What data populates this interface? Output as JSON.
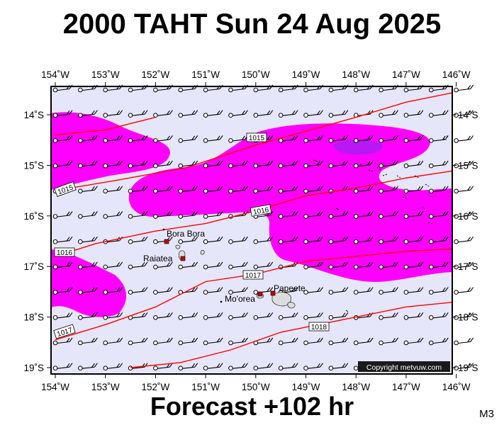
{
  "title": "2000 TAHT Sun 24 Aug 2025",
  "footer": "Forecast +102 hr",
  "code": "M3",
  "copyright": "Copyright metvuw.com",
  "colors": {
    "background": "#e6e6fa",
    "rain": "#ff00ff",
    "rain_heavy": "#a020f0",
    "isobar": "#ff0000",
    "island": "#dcdcdc"
  },
  "longitudes": [
    "154˚W",
    "153˚W",
    "152˚W",
    "151˚W",
    "150˚W",
    "149˚W",
    "148˚W",
    "147˚W",
    "146˚W"
  ],
  "latitudes": [
    "14˚S",
    "15˚S",
    "16˚S",
    "17˚S",
    "18˚S",
    "19˚S"
  ],
  "isobars": [
    {
      "label": "1015",
      "points": [
        [
          -154,
          -14.4
        ],
        [
          -153,
          -14.3
        ],
        [
          -152,
          -14.05
        ]
      ]
    },
    {
      "label": "1015",
      "points": [
        [
          -154,
          -15.5
        ],
        [
          -152.8,
          -15.3
        ],
        [
          -151.4,
          -15.05
        ],
        [
          -150,
          -14.6
        ],
        [
          -148.9,
          -14.3
        ],
        [
          -148,
          -14.05
        ],
        [
          -147,
          -13.75
        ],
        [
          -146,
          -13.55
        ]
      ]
    },
    {
      "label": "1016",
      "points": [
        [
          -154,
          -16.8
        ],
        [
          -153.2,
          -16.55
        ],
        [
          -152,
          -16.3
        ],
        [
          -151,
          -16.15
        ],
        [
          -150,
          -15.9
        ],
        [
          -149,
          -15.6
        ],
        [
          -148,
          -15.45
        ],
        [
          -147,
          -15.25
        ],
        [
          -146,
          -15.1
        ]
      ]
    },
    {
      "label": "1017",
      "points": [
        [
          -154,
          -18.45
        ],
        [
          -153,
          -18.15
        ],
        [
          -152,
          -17.8
        ],
        [
          -151,
          -17.3
        ],
        [
          -150,
          -17.15
        ],
        [
          -149,
          -16.9
        ],
        [
          -148,
          -16.8
        ],
        [
          -147,
          -16.7
        ],
        [
          -146,
          -16.65
        ]
      ]
    },
    {
      "label": "1018",
      "points": [
        [
          -152.5,
          -19
        ],
        [
          -151.5,
          -18.9
        ],
        [
          -150.5,
          -18.65
        ],
        [
          -149.5,
          -18.3
        ],
        [
          -148.5,
          -18.1
        ],
        [
          -147,
          -17.8
        ],
        [
          -146,
          -17.7
        ]
      ]
    }
  ],
  "places": [
    {
      "name": "Bora Bora",
      "lon": -151.75,
      "lat": -16.5
    },
    {
      "name": "Raiatea",
      "lon": -151.45,
      "lat": -16.83
    },
    {
      "name": "Mo'orea",
      "lon": -149.83,
      "lat": -17.53
    },
    {
      "name": "Papeete",
      "lon": -149.57,
      "lat": -17.53
    }
  ]
}
